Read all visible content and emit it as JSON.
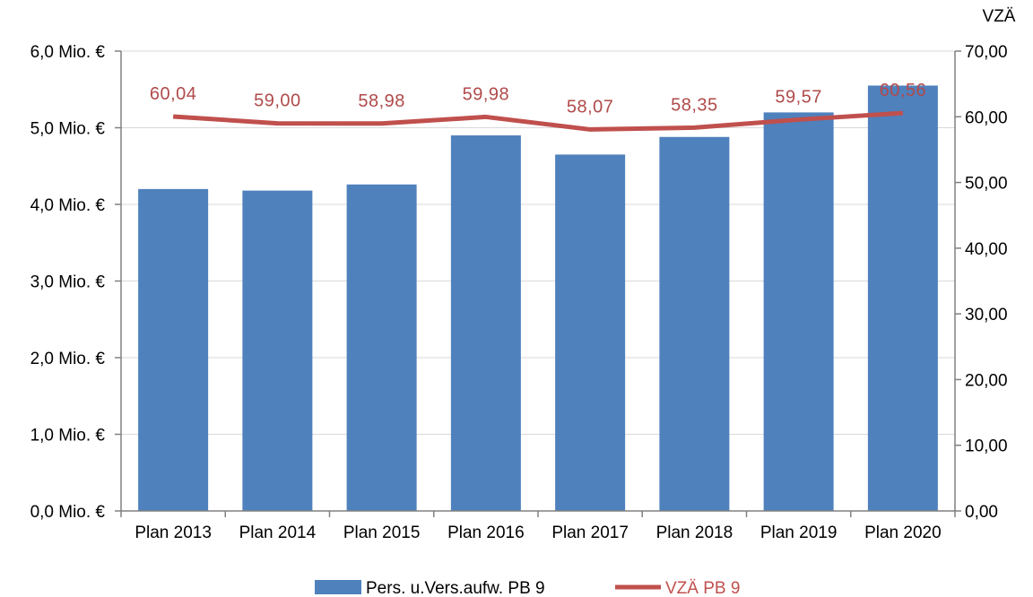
{
  "chart_data": {
    "type": "bar",
    "categories": [
      "Plan 2013",
      "Plan 2014",
      "Plan 2015",
      "Plan 2016",
      "Plan 2017",
      "Plan 2018",
      "Plan 2019",
      "Plan 2020"
    ],
    "series": [
      {
        "name": "Pers. u.Vers.aufw. PB 9",
        "type": "bar",
        "axis": "left",
        "color": "#4f81bd",
        "values": [
          4.2,
          4.18,
          4.26,
          4.9,
          4.65,
          4.88,
          5.2,
          5.55
        ]
      },
      {
        "name": "VZÄ PB 9",
        "type": "line",
        "axis": "right",
        "color": "#c0504d",
        "values": [
          60.04,
          59.0,
          58.98,
          59.98,
          58.07,
          58.35,
          59.57,
          60.56
        ],
        "labels": [
          "60,04",
          "59,00",
          "58,98",
          "59,98",
          "58,07",
          "58,35",
          "59,57",
          "60,56"
        ]
      }
    ],
    "y_left": {
      "range": [
        0,
        6
      ],
      "ticks": [
        0,
        1,
        2,
        3,
        4,
        5,
        6
      ],
      "tick_labels": [
        "0,0 Mio. €",
        "1,0 Mio. €",
        "2,0 Mio. €",
        "3,0 Mio. €",
        "4,0 Mio. €",
        "5,0 Mio. €",
        "6,0 Mio. €"
      ]
    },
    "y_right": {
      "title": "VZÄ",
      "range": [
        0,
        70
      ],
      "ticks": [
        0,
        10,
        20,
        30,
        40,
        50,
        60,
        70
      ],
      "tick_labels": [
        "0,00",
        "10,00",
        "20,00",
        "30,00",
        "40,00",
        "50,00",
        "60,00",
        "70,00"
      ]
    },
    "grid": true,
    "legend_position": "bottom"
  }
}
